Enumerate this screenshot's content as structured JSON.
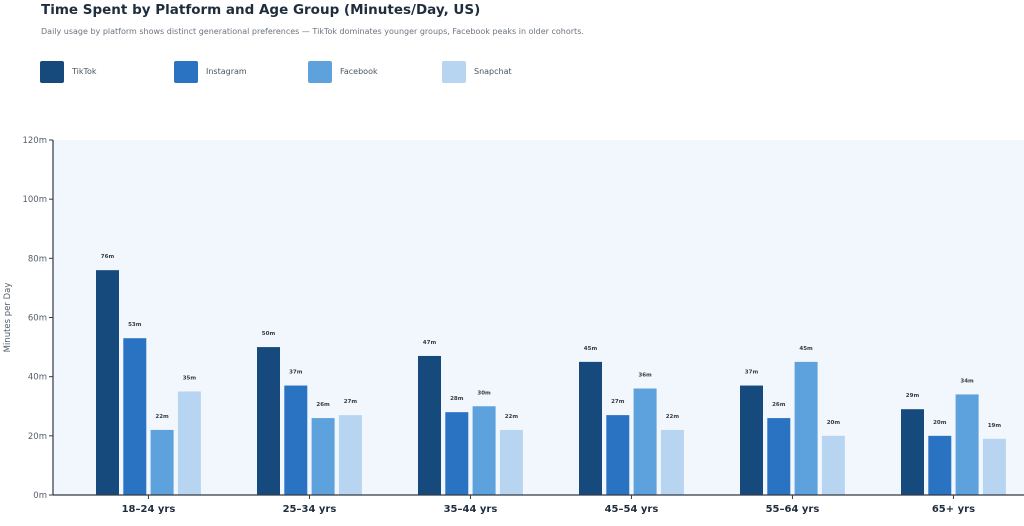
{
  "chart_data": {
    "type": "bar",
    "title": "Time Spent by Platform and Age Group (Minutes/Day, US)",
    "subtitle": "Daily usage by platform shows distinct generational preferences — TikTok dominates younger groups, Facebook peaks in older cohorts.",
    "xlabel": "",
    "ylabel": "Minutes per Day",
    "ylim": [
      0,
      120
    ],
    "yticks": [
      0,
      20,
      40,
      60,
      80,
      100,
      120
    ],
    "ytick_labels": [
      "0m",
      "20m",
      "40m",
      "60m",
      "80m",
      "100m",
      "120m"
    ],
    "categories": [
      "18–24 yrs",
      "25–34 yrs",
      "35–44 yrs",
      "45–54 yrs",
      "55–64 yrs",
      "65+ yrs"
    ],
    "series": [
      {
        "name": "TikTok",
        "color": "#174a7c",
        "values": [
          76,
          50,
          47,
          45,
          37,
          29
        ],
        "labels": [
          "76m",
          "50m",
          "47m",
          "45m",
          "37m",
          "29m"
        ]
      },
      {
        "name": "Instagram",
        "color": "#2a72c2",
        "values": [
          53,
          37,
          28,
          27,
          26,
          20
        ],
        "labels": [
          "53m",
          "37m",
          "28m",
          "27m",
          "26m",
          "20m"
        ]
      },
      {
        "name": "Facebook",
        "color": "#5ea2dd",
        "values": [
          22,
          26,
          30,
          36,
          45,
          34
        ],
        "labels": [
          "22m",
          "26m",
          "30m",
          "36m",
          "45m",
          "34m"
        ]
      },
      {
        "name": "Snapchat",
        "color": "#b7d5f1",
        "values": [
          35,
          27,
          22,
          22,
          20,
          19
        ],
        "labels": [
          "35m",
          "27m",
          "22m",
          "22m",
          "20m",
          "19m"
        ]
      }
    ],
    "legend_position": "top-left",
    "grid": false,
    "plot_background": "#f2f7fd"
  }
}
